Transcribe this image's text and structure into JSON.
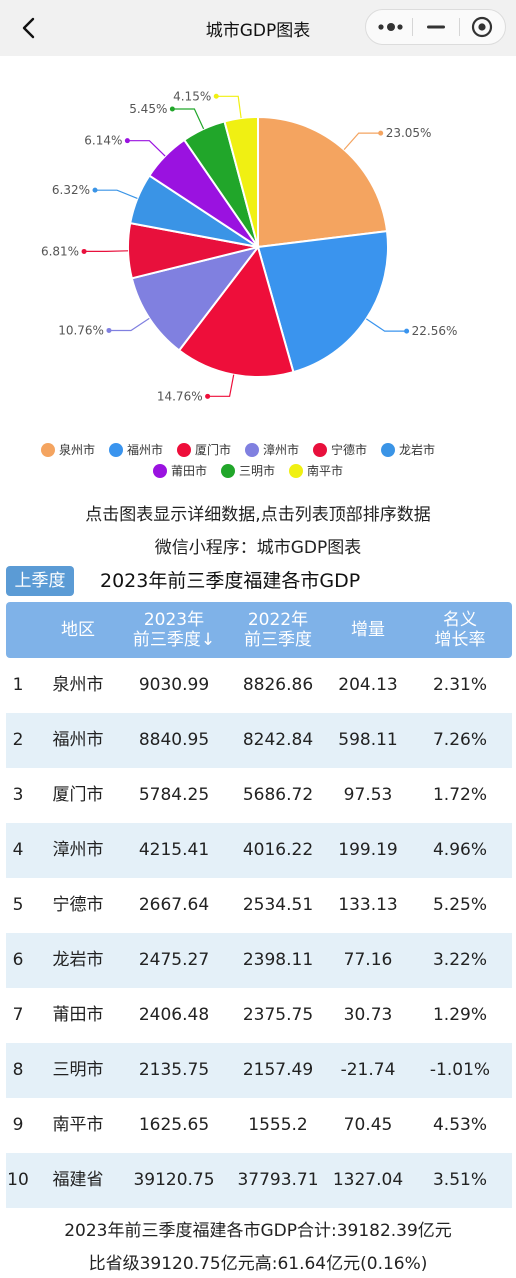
{
  "header": {
    "title": "城市GDP图表"
  },
  "chart_data": {
    "type": "pie",
    "series_name": "",
    "labels": [
      "泉州市",
      "福州市",
      "厦门市",
      "漳州市",
      "宁德市",
      "龙岩市",
      "莆田市",
      "三明市",
      "南平市"
    ],
    "values": [
      23.05,
      22.56,
      14.76,
      10.76,
      6.81,
      6.32,
      6.14,
      5.45,
      4.15
    ],
    "display_labels": [
      "23.05%",
      "22.56%",
      "14.76%",
      "10.76%",
      "6.81%",
      "6.32%",
      "6.14%",
      "5.45%",
      "4.15%"
    ],
    "colors": [
      "#f4a460",
      "#3a94ee",
      "#ee0e3a",
      "#8080e0",
      "#e8103c",
      "#3a94e6",
      "#9a12e0",
      "#21a62a",
      "#f0f012"
    ],
    "legend_position": "bottom"
  },
  "hints": {
    "line1": "点击图表显示详细数据,点击列表顶部排序数据",
    "line2": "微信小程序：城市GDP图表"
  },
  "controls": {
    "season_button": "上季度"
  },
  "table": {
    "title": "2023年前三季度福建各市GDP",
    "headers": {
      "region": "地区",
      "y2023_line1": "2023年",
      "y2023_line2": "前三季度↓",
      "y2022_line1": "2022年",
      "y2022_line2": "前三季度",
      "increase": "增量",
      "rate_line1": "名义",
      "rate_line2": "增长率"
    },
    "rows": [
      {
        "rank": "1",
        "region": "泉州市",
        "v2023": "9030.99",
        "v2022": "8826.86",
        "inc": "204.13",
        "rate": "2.31%"
      },
      {
        "rank": "2",
        "region": "福州市",
        "v2023": "8840.95",
        "v2022": "8242.84",
        "inc": "598.11",
        "rate": "7.26%"
      },
      {
        "rank": "3",
        "region": "厦门市",
        "v2023": "5784.25",
        "v2022": "5686.72",
        "inc": "97.53",
        "rate": "1.72%"
      },
      {
        "rank": "4",
        "region": "漳州市",
        "v2023": "4215.41",
        "v2022": "4016.22",
        "inc": "199.19",
        "rate": "4.96%"
      },
      {
        "rank": "5",
        "region": "宁德市",
        "v2023": "2667.64",
        "v2022": "2534.51",
        "inc": "133.13",
        "rate": "5.25%"
      },
      {
        "rank": "6",
        "region": "龙岩市",
        "v2023": "2475.27",
        "v2022": "2398.11",
        "inc": "77.16",
        "rate": "3.22%"
      },
      {
        "rank": "7",
        "region": "莆田市",
        "v2023": "2406.48",
        "v2022": "2375.75",
        "inc": "30.73",
        "rate": "1.29%"
      },
      {
        "rank": "8",
        "region": "三明市",
        "v2023": "2135.75",
        "v2022": "2157.49",
        "inc": "-21.74",
        "rate": "-1.01%"
      },
      {
        "rank": "9",
        "region": "南平市",
        "v2023": "1625.65",
        "v2022": "1555.2",
        "inc": "70.45",
        "rate": "4.53%"
      },
      {
        "rank": "10",
        "region": "福建省",
        "v2023": "39120.75",
        "v2022": "37793.71",
        "inc": "1327.04",
        "rate": "3.51%"
      }
    ]
  },
  "footer": {
    "line1": "2023年前三季度福建各市GDP合计:39182.39亿元",
    "line2": "比省级39120.75亿元高:61.64亿元(0.16%)"
  }
}
